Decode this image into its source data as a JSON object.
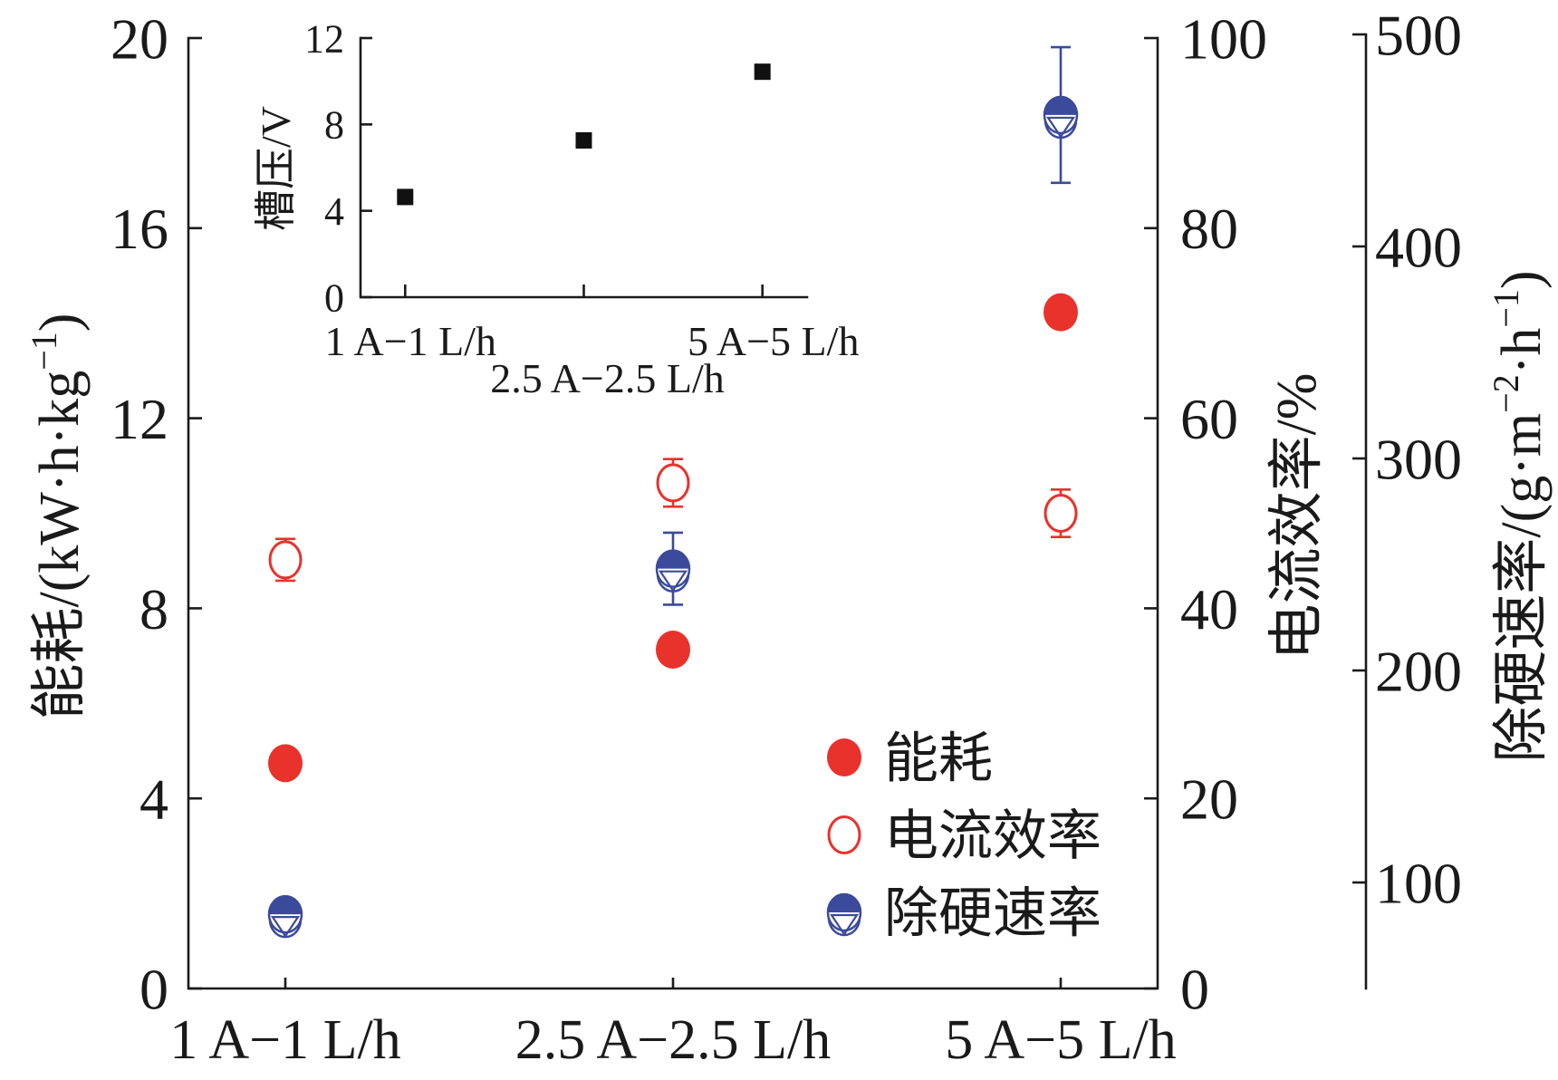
{
  "chart_data": [
    {
      "type": "scatter",
      "categories": [
        "1 A−1 L/h",
        "2.5 A−2.5 L/h",
        "5 A−5 L/h"
      ],
      "grid": false,
      "legend": "lower-right",
      "y_axes": [
        {
          "label": [
            {
              "text": "能耗/(kW·h·kg"
            },
            {
              "text": "−1",
              "sup": true
            },
            {
              "text": ")"
            }
          ],
          "ylim": [
            0,
            20
          ],
          "ticks": [
            0,
            4,
            8,
            12,
            16,
            20
          ]
        },
        {
          "label": [
            {
              "text": "电流效率/%"
            }
          ],
          "ylim": [
            0,
            100
          ],
          "ticks": [
            0,
            20,
            40,
            60,
            80,
            100
          ]
        },
        {
          "label": [
            {
              "text": "除硬速率/(g·m"
            },
            {
              "text": "−2",
              "sup": true
            },
            {
              "text": "·h"
            },
            {
              "text": "−1",
              "sup": true
            },
            {
              "text": ")"
            }
          ],
          "ylim": [
            50,
            500
          ],
          "ticks": [
            100,
            200,
            300,
            400,
            500
          ]
        }
      ],
      "series": [
        {
          "name": "能耗",
          "y_axis": 0,
          "values": [
            4.74,
            7.13,
            14.23
          ],
          "marker": "filled-circle",
          "color": "#e8322b"
        },
        {
          "name": "电流效率",
          "y_axis": 1,
          "values": [
            45.1,
            53.2,
            50.0
          ],
          "errors": [
            2.2,
            2.5,
            2.5
          ],
          "marker": "open-circle",
          "color": "#e8322b"
        },
        {
          "name": "除硬速率",
          "y_axis": 2,
          "values": [
            85,
            248,
            462
          ],
          "errors": [
            0,
            17,
            32
          ],
          "marker": "half-filled-circle",
          "color": "#3b4a9a"
        }
      ]
    },
    {
      "type": "scatter",
      "inset": true,
      "categories": [
        "1 A−1 L/h",
        "2.5 A−2.5 L/h",
        "5 A−5 L/h"
      ],
      "ylabel": "槽压/V",
      "ylim": [
        0,
        12
      ],
      "ticks": [
        0,
        4,
        8,
        12
      ],
      "series": [
        {
          "values": [
            4.64,
            7.26,
            10.44
          ],
          "marker": "filled-square",
          "color": "#111111"
        }
      ]
    }
  ]
}
